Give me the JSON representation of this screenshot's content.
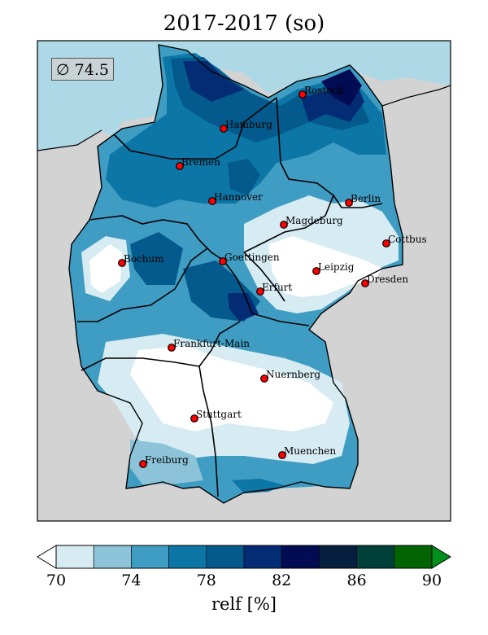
{
  "title": "2017-2017 (so)",
  "average_badge": "∅ 74.5",
  "colorbar": {
    "label": "relf [%]",
    "ticks": [
      "70",
      "74",
      "78",
      "82",
      "86",
      "90"
    ],
    "levels": [
      70,
      72,
      74,
      76,
      78,
      80,
      82,
      84,
      86,
      88,
      90
    ],
    "colors": [
      "#ffffff",
      "#d6ebf2",
      "#8cc3d8",
      "#3f9cc2",
      "#0c76a6",
      "#045a8c",
      "#032c74",
      "#020c52",
      "#061f3f",
      "#00403a",
      "#006400",
      "#008f1a"
    ],
    "extend": "both"
  },
  "colors": {
    "sea": "#add8e6",
    "land_outside": "#d3d3d3",
    "city_marker": "#ff0000"
  },
  "cities": [
    {
      "name": "Rostock"
    },
    {
      "name": "Hamburg"
    },
    {
      "name": "Bremen"
    },
    {
      "name": "Hannover"
    },
    {
      "name": "Berlin"
    },
    {
      "name": "Magdeburg"
    },
    {
      "name": "Cottbus"
    },
    {
      "name": "Bochum"
    },
    {
      "name": "Goettingen"
    },
    {
      "name": "Leipzig"
    },
    {
      "name": "Dresden"
    },
    {
      "name": "Erfurt"
    },
    {
      "name": "Frankfurt-Main"
    },
    {
      "name": "Nuernberg"
    },
    {
      "name": "Stuttgart"
    },
    {
      "name": "Muenchen"
    },
    {
      "name": "Freiburg"
    }
  ]
}
